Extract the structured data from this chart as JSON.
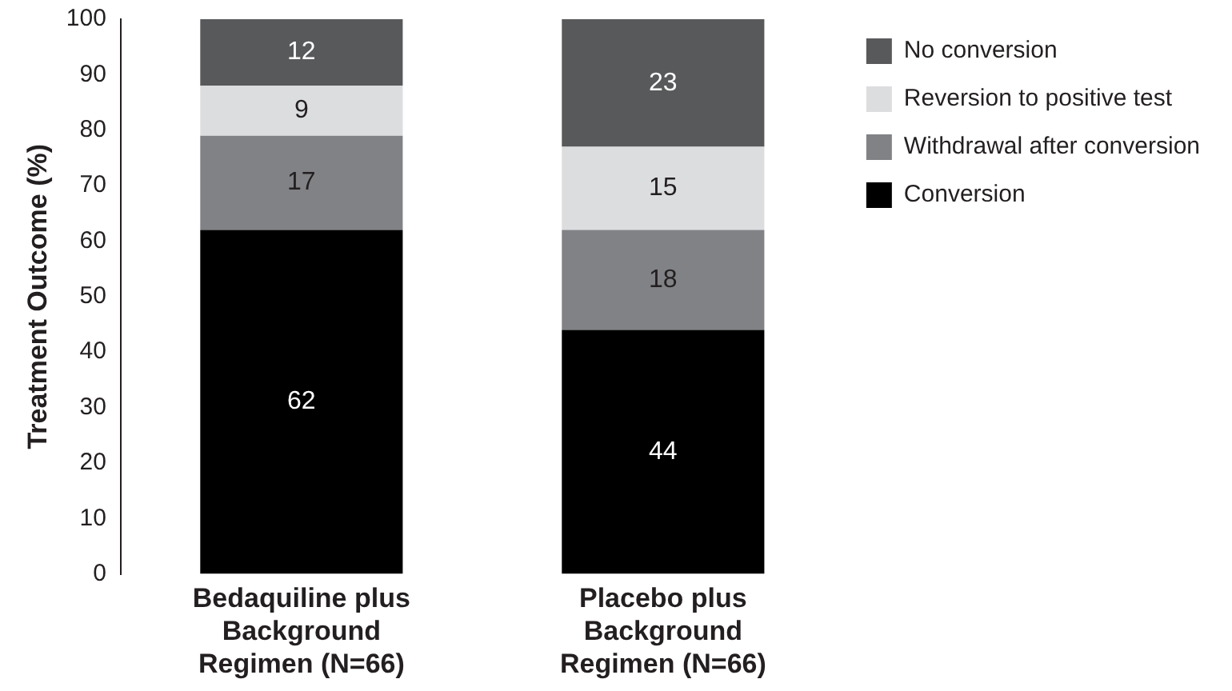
{
  "chart_data": {
    "type": "bar",
    "stacked": true,
    "ylabel": "Treatment Outcome (%)",
    "categories": [
      "Bedaquiline plus Background Regimen (N=66)",
      "Placebo plus Background Regimen (N=66)"
    ],
    "series": [
      {
        "name": "Conversion",
        "color": "#000000",
        "values": [
          62,
          44
        ]
      },
      {
        "name": "Withdrawal after conversion",
        "color": "#808285",
        "values": [
          17,
          18
        ]
      },
      {
        "name": "Reversion to positive test",
        "color": "#dcdddf",
        "values": [
          9,
          15
        ]
      },
      {
        "name": "No conversion",
        "color": "#58595b",
        "values": [
          12,
          23
        ]
      }
    ],
    "ylim": [
      0,
      100
    ],
    "yticks": [
      0,
      10,
      20,
      30,
      40,
      50,
      60,
      70,
      80,
      90,
      100
    ],
    "grid": false,
    "legend": "top right",
    "data_labels": true
  }
}
